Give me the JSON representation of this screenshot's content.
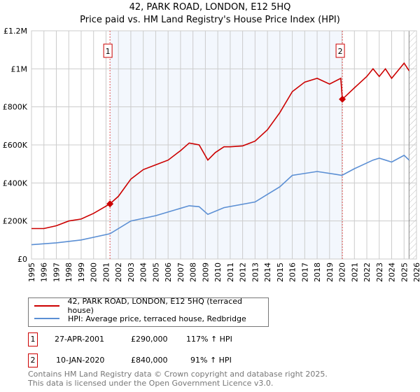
{
  "chart_data": {
    "type": "line",
    "title": "42, PARK ROAD, LONDON, E12 5HQ",
    "subtitle": "Price paid vs. HM Land Registry's House Price Index (HPI)",
    "xlim": [
      1995,
      2026
    ],
    "ylim": [
      0,
      1200000
    ],
    "x_ticks": [
      "1995",
      "1996",
      "1997",
      "1998",
      "1999",
      "2000",
      "2001",
      "2002",
      "2003",
      "2004",
      "2005",
      "2006",
      "2007",
      "2008",
      "2009",
      "2010",
      "2011",
      "2012",
      "2013",
      "2014",
      "2015",
      "2016",
      "2017",
      "2018",
      "2019",
      "2020",
      "2021",
      "2022",
      "2023",
      "2024",
      "2025",
      "2026"
    ],
    "y_ticks": [
      {
        "v": 0,
        "label": "£0"
      },
      {
        "v": 200000,
        "label": "£200K"
      },
      {
        "v": 400000,
        "label": "£400K"
      },
      {
        "v": 600000,
        "label": "£600K"
      },
      {
        "v": 800000,
        "label": "£800K"
      },
      {
        "v": 1000000,
        "label": "£1M"
      },
      {
        "v": 1200000,
        "label": "£1.2M"
      }
    ],
    "grid": true,
    "series": [
      {
        "name": "42, PARK ROAD, LONDON, E12 5HQ (terraced house)",
        "color": "#cc0000",
        "x": [
          1995,
          1996,
          1997,
          1998,
          1999,
          2000,
          2001.32,
          2002,
          2003,
          2004,
          2005,
          2006,
          2007,
          2007.7,
          2008.5,
          2009.2,
          2009.8,
          2010.5,
          2011,
          2012,
          2013,
          2014,
          2015,
          2016,
          2017,
          2018,
          2019,
          2019.9,
          2020.03,
          2021,
          2022,
          2022.5,
          2023,
          2023.5,
          2024,
          2025,
          2025.4
        ],
        "y": [
          160000,
          160000,
          175000,
          200000,
          210000,
          240000,
          290000,
          330000,
          420000,
          470000,
          495000,
          520000,
          570000,
          610000,
          600000,
          520000,
          560000,
          590000,
          590000,
          595000,
          620000,
          680000,
          770000,
          880000,
          930000,
          950000,
          920000,
          950000,
          840000,
          900000,
          960000,
          1000000,
          960000,
          1000000,
          950000,
          1030000,
          990000
        ]
      },
      {
        "name": "HPI: Average price, terraced house, Redbridge",
        "color": "#5b8fd4",
        "x": [
          1995,
          1997,
          1999,
          2001.32,
          2003,
          2005,
          2007.7,
          2008.5,
          2009.2,
          2010.5,
          2013,
          2015,
          2016,
          2018,
          2019.5,
          2020,
          2021,
          2022.5,
          2023,
          2023.5,
          2024,
          2025,
          2025.4
        ],
        "y": [
          75000,
          85000,
          100000,
          133000,
          200000,
          228000,
          280000,
          275000,
          235000,
          270000,
          300000,
          380000,
          440000,
          460000,
          445000,
          440000,
          475000,
          520000,
          530000,
          520000,
          510000,
          545000,
          520000
        ]
      }
    ],
    "annotations": [
      {
        "id": "1",
        "date": "27-APR-2001",
        "x": 2001.32,
        "price": "£290,000",
        "value": 290000,
        "hpi": "117% ↑ HPI"
      },
      {
        "id": "2",
        "date": "10-JAN-2020",
        "x": 2020.03,
        "price": "£840,000",
        "value": 840000,
        "hpi": "91% ↑ HPI"
      }
    ],
    "future_hatch_from": 2025.4,
    "legend_placement": "bottom"
  },
  "footer": [
    "Contains HM Land Registry data © Crown copyright and database right 2025.",
    "This data is licensed under the Open Government Licence v3.0."
  ]
}
